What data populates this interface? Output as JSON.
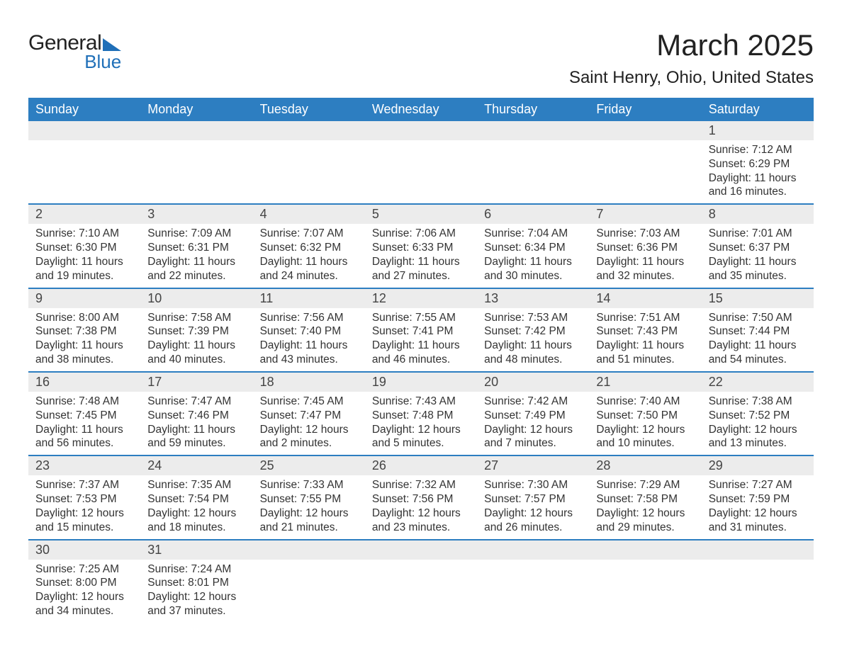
{
  "brand": {
    "word1": "General",
    "word2": "Blue",
    "accent_color": "#1f6fb8"
  },
  "title": "March 2025",
  "location": "Saint Henry, Ohio, United States",
  "colors": {
    "header_bg": "#2d7ec1",
    "header_text": "#ffffff",
    "daynum_bg": "#ececec",
    "row_border": "#2d7ec1",
    "body_text": "#333333",
    "page_bg": "#ffffff"
  },
  "day_headers": [
    "Sunday",
    "Monday",
    "Tuesday",
    "Wednesday",
    "Thursday",
    "Friday",
    "Saturday"
  ],
  "weeks": [
    {
      "nums": [
        "",
        "",
        "",
        "",
        "",
        "",
        "1"
      ],
      "cells": [
        "",
        "",
        "",
        "",
        "",
        "",
        "Sunrise: 7:12 AM\nSunset: 6:29 PM\nDaylight: 11 hours and 16 minutes."
      ]
    },
    {
      "nums": [
        "2",
        "3",
        "4",
        "5",
        "6",
        "7",
        "8"
      ],
      "cells": [
        "Sunrise: 7:10 AM\nSunset: 6:30 PM\nDaylight: 11 hours and 19 minutes.",
        "Sunrise: 7:09 AM\nSunset: 6:31 PM\nDaylight: 11 hours and 22 minutes.",
        "Sunrise: 7:07 AM\nSunset: 6:32 PM\nDaylight: 11 hours and 24 minutes.",
        "Sunrise: 7:06 AM\nSunset: 6:33 PM\nDaylight: 11 hours and 27 minutes.",
        "Sunrise: 7:04 AM\nSunset: 6:34 PM\nDaylight: 11 hours and 30 minutes.",
        "Sunrise: 7:03 AM\nSunset: 6:36 PM\nDaylight: 11 hours and 32 minutes.",
        "Sunrise: 7:01 AM\nSunset: 6:37 PM\nDaylight: 11 hours and 35 minutes."
      ]
    },
    {
      "nums": [
        "9",
        "10",
        "11",
        "12",
        "13",
        "14",
        "15"
      ],
      "cells": [
        "Sunrise: 8:00 AM\nSunset: 7:38 PM\nDaylight: 11 hours and 38 minutes.",
        "Sunrise: 7:58 AM\nSunset: 7:39 PM\nDaylight: 11 hours and 40 minutes.",
        "Sunrise: 7:56 AM\nSunset: 7:40 PM\nDaylight: 11 hours and 43 minutes.",
        "Sunrise: 7:55 AM\nSunset: 7:41 PM\nDaylight: 11 hours and 46 minutes.",
        "Sunrise: 7:53 AM\nSunset: 7:42 PM\nDaylight: 11 hours and 48 minutes.",
        "Sunrise: 7:51 AM\nSunset: 7:43 PM\nDaylight: 11 hours and 51 minutes.",
        "Sunrise: 7:50 AM\nSunset: 7:44 PM\nDaylight: 11 hours and 54 minutes."
      ]
    },
    {
      "nums": [
        "16",
        "17",
        "18",
        "19",
        "20",
        "21",
        "22"
      ],
      "cells": [
        "Sunrise: 7:48 AM\nSunset: 7:45 PM\nDaylight: 11 hours and 56 minutes.",
        "Sunrise: 7:47 AM\nSunset: 7:46 PM\nDaylight: 11 hours and 59 minutes.",
        "Sunrise: 7:45 AM\nSunset: 7:47 PM\nDaylight: 12 hours and 2 minutes.",
        "Sunrise: 7:43 AM\nSunset: 7:48 PM\nDaylight: 12 hours and 5 minutes.",
        "Sunrise: 7:42 AM\nSunset: 7:49 PM\nDaylight: 12 hours and 7 minutes.",
        "Sunrise: 7:40 AM\nSunset: 7:50 PM\nDaylight: 12 hours and 10 minutes.",
        "Sunrise: 7:38 AM\nSunset: 7:52 PM\nDaylight: 12 hours and 13 minutes."
      ]
    },
    {
      "nums": [
        "23",
        "24",
        "25",
        "26",
        "27",
        "28",
        "29"
      ],
      "cells": [
        "Sunrise: 7:37 AM\nSunset: 7:53 PM\nDaylight: 12 hours and 15 minutes.",
        "Sunrise: 7:35 AM\nSunset: 7:54 PM\nDaylight: 12 hours and 18 minutes.",
        "Sunrise: 7:33 AM\nSunset: 7:55 PM\nDaylight: 12 hours and 21 minutes.",
        "Sunrise: 7:32 AM\nSunset: 7:56 PM\nDaylight: 12 hours and 23 minutes.",
        "Sunrise: 7:30 AM\nSunset: 7:57 PM\nDaylight: 12 hours and 26 minutes.",
        "Sunrise: 7:29 AM\nSunset: 7:58 PM\nDaylight: 12 hours and 29 minutes.",
        "Sunrise: 7:27 AM\nSunset: 7:59 PM\nDaylight: 12 hours and 31 minutes."
      ]
    },
    {
      "nums": [
        "30",
        "31",
        "",
        "",
        "",
        "",
        ""
      ],
      "cells": [
        "Sunrise: 7:25 AM\nSunset: 8:00 PM\nDaylight: 12 hours and 34 minutes.",
        "Sunrise: 7:24 AM\nSunset: 8:01 PM\nDaylight: 12 hours and 37 minutes.",
        "",
        "",
        "",
        "",
        ""
      ]
    }
  ]
}
